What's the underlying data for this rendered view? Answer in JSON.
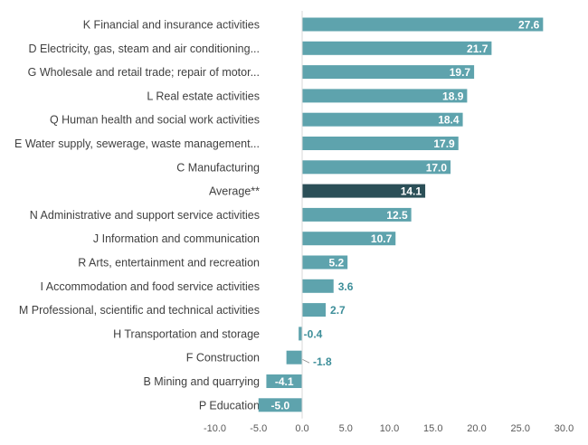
{
  "chart_data": {
    "type": "bar",
    "orientation": "horizontal",
    "categories": [
      "K Financial and insurance activities",
      "D Electricity, gas, steam and air conditioning...",
      "G Wholesale and retail trade; repair of motor...",
      "L Real estate activities",
      "Q Human health and social work activities",
      "E Water supply, sewerage, waste management...",
      "C Manufacturing",
      "Average**",
      "N Administrative and support service activities",
      "J Information and communication",
      "R Arts, entertainment and recreation",
      "I Accommodation and food service activities",
      "M Professional, scientific and technical activities",
      "H Transportation and storage",
      "F Construction",
      "B Mining and quarrying",
      "P Education"
    ],
    "values": [
      27.6,
      21.7,
      19.7,
      18.9,
      18.4,
      17.9,
      17.0,
      14.1,
      12.5,
      10.7,
      5.2,
      3.6,
      2.7,
      -0.4,
      -1.8,
      -4.1,
      -5.0
    ],
    "value_labels": [
      "27.6",
      "21.7",
      "19.7",
      "18.9",
      "18.4",
      "17.9",
      "17.0",
      "14.1",
      "12.5",
      "10.7",
      "5.2",
      "3.6",
      "2.7",
      "-0.4",
      "-1.8",
      "-4.1",
      "-5.0"
    ],
    "highlight_category": "Average**",
    "xlim": [
      -10,
      30
    ],
    "xticks": [
      -10,
      -5,
      0,
      5,
      10,
      15,
      20,
      25,
      30
    ],
    "xtick_labels": [
      "-10.0",
      "-5.0",
      "0.0",
      "5.0",
      "10.0",
      "15.0",
      "20.0",
      "25.0",
      "30.0"
    ],
    "title": "",
    "xlabel": "",
    "ylabel": "",
    "grid": false,
    "legend": "none",
    "colors": {
      "bar": "#5ea3ad",
      "highlight": "#2b4f57",
      "label_inside": "#ffffff",
      "label_outside": "#3d8e99",
      "axis": "#d9d9d9"
    }
  }
}
